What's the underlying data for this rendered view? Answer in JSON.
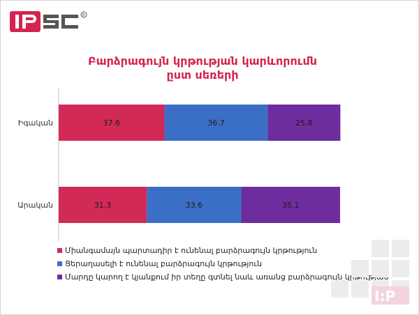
{
  "logo": {
    "text": "IPSC",
    "registered": "®"
  },
  "chart_data": {
    "type": "bar",
    "orientation": "horizontal",
    "stacked": true,
    "title_lines": [
      "Բարձրագույն կրթության կարևորումն",
      "ըստ սեռերի"
    ],
    "categories": [
      "Իգական",
      "Արական"
    ],
    "series": [
      {
        "name": "Միանգամայն պարտադիր է ունենալ բարձրագույն կրթություն",
        "color": "#d12a56",
        "values": [
          37.6,
          31.3
        ]
      },
      {
        "name": "Ցերաղասելի է ունենալ բարձրագույն կրթություն",
        "color": "#3b6fc6",
        "values": [
          36.7,
          33.6
        ]
      },
      {
        "name": "Մարդը կարող է կյանքում իր տեղը գտնել նաև առանց բարձրագույն կրթության",
        "color": "#6e2d9e",
        "values": [
          25.8,
          35.1
        ]
      }
    ],
    "xlim": [
      0,
      100
    ],
    "legend_position": "bottom-left",
    "grid": false
  }
}
